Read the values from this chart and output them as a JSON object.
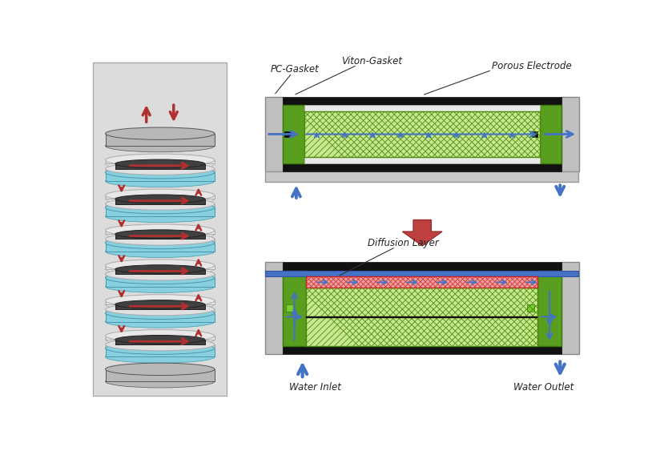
{
  "bg_color": "#ffffff",
  "labels": {
    "pc_gasket": "PC-Gasket",
    "viton_gasket": "Viton-Gasket",
    "porous_electrode": "Porous Electrode",
    "diffusion_layer": "Diffusion Layer",
    "water_inlet": "Water Inlet",
    "water_outlet": "Water Outlet"
  },
  "colors": {
    "black": "#111111",
    "green": "#5a9e20",
    "dark_green": "#3a7a0a",
    "light_gray": "#d0d0d0",
    "mid_gray": "#b0b0b0",
    "dark_gray": "#707070",
    "white": "#ffffff",
    "blue_arrow": "#4472c4",
    "red_arrow": "#b03030",
    "blue_layer": "#4472c4",
    "red_mesh_bg": "#f0a0a0",
    "red_mesh_line": "#cc2222",
    "green_mesh_bg": "#c8e890",
    "green_mesh_line": "#4a8a0a",
    "cyan": "#90d8e8",
    "panel_bg": "#e8e8e8"
  }
}
